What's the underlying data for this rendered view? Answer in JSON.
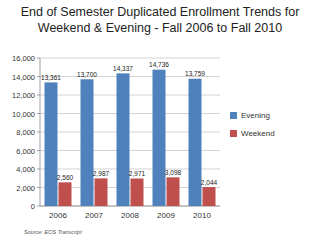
{
  "chart_data": {
    "type": "bar",
    "title": "End of Semester Duplicated Enrollment Trends for Weekend & Evening - Fall 2006 to Fall 2010",
    "source": "Source: EOS Transcript",
    "categories": [
      "2006",
      "2007",
      "2008",
      "2009",
      "2010"
    ],
    "series": [
      {
        "name": "Evening",
        "color": "#4f81bd",
        "values": [
          13361,
          13700,
          14337,
          14736,
          13759
        ],
        "value_labels": [
          "13,361",
          "13,700",
          "14,337",
          "14,736",
          "13,759"
        ]
      },
      {
        "name": "Weekend",
        "color": "#c0504d",
        "values": [
          2560,
          2987,
          2971,
          3098,
          2044
        ],
        "value_labels": [
          "2,560",
          "2,987",
          "2,971",
          "3,098",
          "2,044"
        ]
      }
    ],
    "ylim": [
      0,
      16000
    ],
    "yticks": [
      0,
      {
        "value": 2000,
        "label": "2,000"
      },
      {
        "value": 4000,
        "label": "4,000"
      },
      {
        "value": 6000,
        "label": "6,000"
      },
      {
        "value": 8000,
        "label": "8,000"
      },
      {
        "value": 10000,
        "label": "10,000"
      },
      {
        "value": 12000,
        "label": "12,000"
      },
      {
        "value": 14000,
        "label": "14,000"
      },
      {
        "value": 16000,
        "label": "16,000"
      }
    ],
    "grid": true,
    "legend": "right",
    "data_labels": true
  }
}
